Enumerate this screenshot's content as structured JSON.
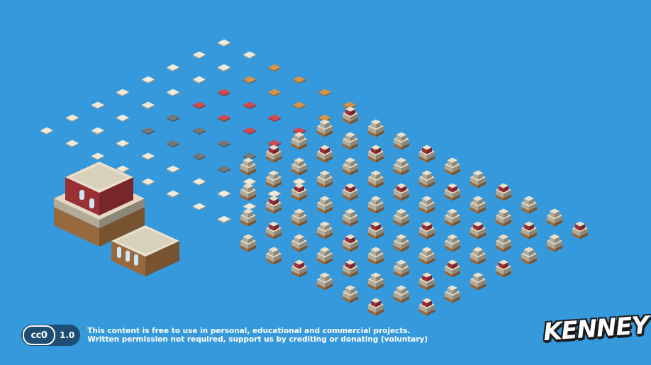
{
  "footer": {
    "license_badge": "cc0",
    "license_version": "1.0",
    "line1": "This content is free to use in personal, educational and commercial projects.",
    "line2": "Written permission not required, support us by crediting or donating (voluntary)"
  },
  "brand": {
    "logo_text": "KENNEY"
  },
  "colors": {
    "background": "#3699dc",
    "paving_light": "#f1ead8",
    "paving_gray": "#777777",
    "roof_red": "#d04b50",
    "dirt_orange": "#d6934a",
    "brick_red": "#b93b40",
    "wall_beige": "#d9d0bb",
    "base_brown": "#b8804a"
  }
}
